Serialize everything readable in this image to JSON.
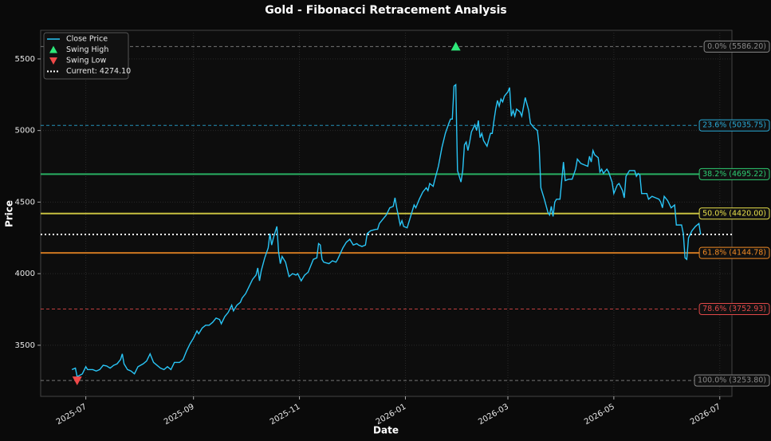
{
  "chart_data": {
    "type": "line",
    "title": "Gold - Fibonacci Retracement Analysis",
    "xlabel": "Date",
    "ylabel": "Price",
    "xlim": [
      -26,
      372
    ],
    "xticks": [
      {
        "value": 0,
        "label": "2025-07"
      },
      {
        "value": 62,
        "label": "2025-09"
      },
      {
        "value": 123,
        "label": "2025-11"
      },
      {
        "value": 184,
        "label": "2026-01"
      },
      {
        "value": 243,
        "label": "2026-03"
      },
      {
        "value": 304,
        "label": "2026-05"
      },
      {
        "value": 365,
        "label": "2026-07"
      }
    ],
    "ylim": [
      3143,
      5700
    ],
    "yticks": [
      3500,
      4000,
      4500,
      5000,
      5500
    ],
    "grid": true,
    "legend": "upper-left",
    "series": [
      {
        "name": "Close Price",
        "color": "#29c5f6",
        "x": [
          -8,
          -6,
          -5,
          -2,
          0,
          1,
          4,
          6,
          8,
          10,
          12,
          14,
          16,
          18,
          20,
          21,
          22,
          24,
          26,
          28,
          30,
          33,
          35,
          37,
          39,
          41,
          43,
          45,
          47,
          49,
          51,
          54,
          56,
          58,
          60,
          62,
          64,
          65,
          67,
          69,
          71,
          73,
          75,
          77,
          78,
          80,
          82,
          84,
          85,
          87,
          89,
          90,
          92,
          94,
          96,
          98,
          99,
          100,
          101,
          103,
          105,
          106,
          107,
          108,
          110,
          111,
          112,
          113,
          115,
          117,
          119,
          121,
          122,
          124,
          126,
          128,
          131,
          133,
          134,
          135,
          136,
          137,
          140,
          142,
          144,
          145,
          148,
          150,
          152,
          154,
          156,
          157,
          159,
          161,
          162,
          164,
          167,
          168,
          169,
          171,
          173,
          175,
          177,
          178,
          179,
          181,
          182,
          183,
          185,
          187,
          189,
          190,
          192,
          194,
          196,
          197,
          198,
          200,
          201,
          203,
          205,
          207,
          209,
          210,
          211,
          212,
          213,
          214,
          215,
          216,
          217,
          218,
          219,
          220,
          221,
          222,
          224,
          225,
          226,
          227,
          228,
          229,
          231,
          233,
          234,
          235,
          236,
          237,
          238,
          239,
          240,
          241,
          243,
          244,
          245,
          246,
          247,
          248,
          250,
          251,
          253,
          255,
          256,
          258,
          260,
          261,
          262,
          264,
          266,
          267,
          268,
          269,
          270,
          271,
          273,
          275,
          276,
          278,
          280,
          282,
          283,
          285,
          287,
          289,
          290,
          291,
          292,
          293,
          295,
          296,
          297,
          298,
          300,
          301,
          303,
          304,
          306,
          307,
          309,
          310,
          311,
          313,
          315,
          316,
          317,
          318,
          319,
          320,
          322,
          323,
          324,
          326,
          328,
          330,
          331,
          332,
          333,
          335,
          337,
          339,
          340,
          342,
          343,
          344,
          345,
          346,
          347,
          349,
          351,
          353,
          354
        ],
        "values": [
          3330,
          3340,
          3280,
          3300,
          3350,
          3330,
          3330,
          3320,
          3330,
          3360,
          3355,
          3340,
          3360,
          3370,
          3400,
          3440,
          3370,
          3330,
          3320,
          3300,
          3350,
          3370,
          3390,
          3440,
          3380,
          3360,
          3340,
          3330,
          3350,
          3330,
          3380,
          3380,
          3400,
          3460,
          3510,
          3550,
          3600,
          3580,
          3620,
          3640,
          3640,
          3660,
          3690,
          3680,
          3650,
          3700,
          3730,
          3780,
          3740,
          3780,
          3800,
          3830,
          3860,
          3910,
          3960,
          3990,
          4040,
          3950,
          4020,
          4110,
          4180,
          4280,
          4200,
          4250,
          4330,
          4150,
          4070,
          4120,
          4080,
          3980,
          4000,
          3990,
          4000,
          3950,
          3990,
          4010,
          4100,
          4110,
          4210,
          4200,
          4100,
          4080,
          4070,
          4090,
          4080,
          4100,
          4180,
          4220,
          4240,
          4200,
          4210,
          4200,
          4190,
          4200,
          4280,
          4300,
          4310,
          4310,
          4350,
          4380,
          4410,
          4460,
          4470,
          4530,
          4460,
          4340,
          4370,
          4330,
          4320,
          4400,
          4480,
          4460,
          4520,
          4570,
          4600,
          4580,
          4630,
          4610,
          4660,
          4750,
          4880,
          4980,
          5050,
          5080,
          5080,
          5310,
          5320,
          4720,
          4680,
          4640,
          4720,
          4900,
          4920,
          4860,
          4920,
          4990,
          5040,
          5000,
          5070,
          4950,
          4980,
          4930,
          4890,
          4980,
          4980,
          5070,
          5150,
          5210,
          5170,
          5220,
          5200,
          5240,
          5270,
          5300,
          5100,
          5140,
          5100,
          5150,
          5130,
          5100,
          5230,
          5140,
          5050,
          5020,
          5000,
          4890,
          4600,
          4520,
          4430,
          4410,
          4470,
          4400,
          4500,
          4520,
          4520,
          4780,
          4650,
          4660,
          4660,
          4730,
          4800,
          4770,
          4760,
          4750,
          4820,
          4780,
          4860,
          4830,
          4810,
          4710,
          4730,
          4700,
          4730,
          4710,
          4640,
          4560,
          4620,
          4630,
          4580,
          4530,
          4680,
          4720,
          4720,
          4720,
          4680,
          4700,
          4690,
          4560,
          4560,
          4560,
          4520,
          4540,
          4530,
          4520,
          4500,
          4460,
          4540,
          4510,
          4460,
          4480,
          4340,
          4340,
          4340,
          4280,
          4110,
          4100,
          4250,
          4300,
          4330,
          4350,
          4274
        ]
      }
    ],
    "swing_high": {
      "name": "Swing High",
      "color": "#2ee87a",
      "x": 213,
      "value": 5586.2
    },
    "swing_low": {
      "name": "Swing Low",
      "color": "#f04848",
      "x": -5,
      "value": 3253.8
    },
    "current": {
      "name": "Current: 4274.10",
      "color": "#ffffff",
      "value": 4274.1
    },
    "levels": [
      {
        "label": "0.0% (5586.20)",
        "value": 5586.2,
        "color": "#888888",
        "style": "dashed"
      },
      {
        "label": "23.6% (5035.75)",
        "value": 5035.75,
        "color": "#29a9d6",
        "style": "dashed"
      },
      {
        "label": "38.2% (4695.22)",
        "value": 4695.22,
        "color": "#2ecc71",
        "style": "solid"
      },
      {
        "label": "50.0% (4420.00)",
        "value": 4420.0,
        "color": "#e8e04a",
        "style": "solid"
      },
      {
        "label": "61.8% (4144.78)",
        "value": 4144.78,
        "color": "#f08a24",
        "style": "solid"
      },
      {
        "label": "78.6% (3752.93)",
        "value": 3752.93,
        "color": "#e04848",
        "style": "dashed"
      },
      {
        "label": "100.0% (3253.80)",
        "value": 3253.8,
        "color": "#888888",
        "style": "dashed"
      }
    ]
  }
}
